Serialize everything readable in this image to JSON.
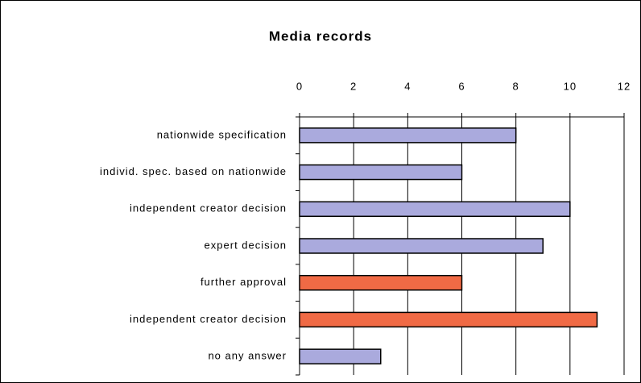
{
  "chart_data": {
    "type": "bar",
    "title": "Media records",
    "categories": [
      "nationwide specification",
      "individ. spec. based on nationwide",
      "independent creator decision",
      "expert decision",
      "further approval",
      "independent creator decision",
      "no any answer"
    ],
    "values": [
      8,
      6,
      10,
      9,
      6,
      11,
      3
    ],
    "colors": [
      "#aaaadd",
      "#aaaadd",
      "#aaaadd",
      "#aaaadd",
      "#f06a45",
      "#f06a45",
      "#aaaadd"
    ],
    "xlim": [
      0,
      12
    ],
    "xticks": [
      0,
      2,
      4,
      6,
      8,
      10,
      12
    ],
    "grid": true
  }
}
